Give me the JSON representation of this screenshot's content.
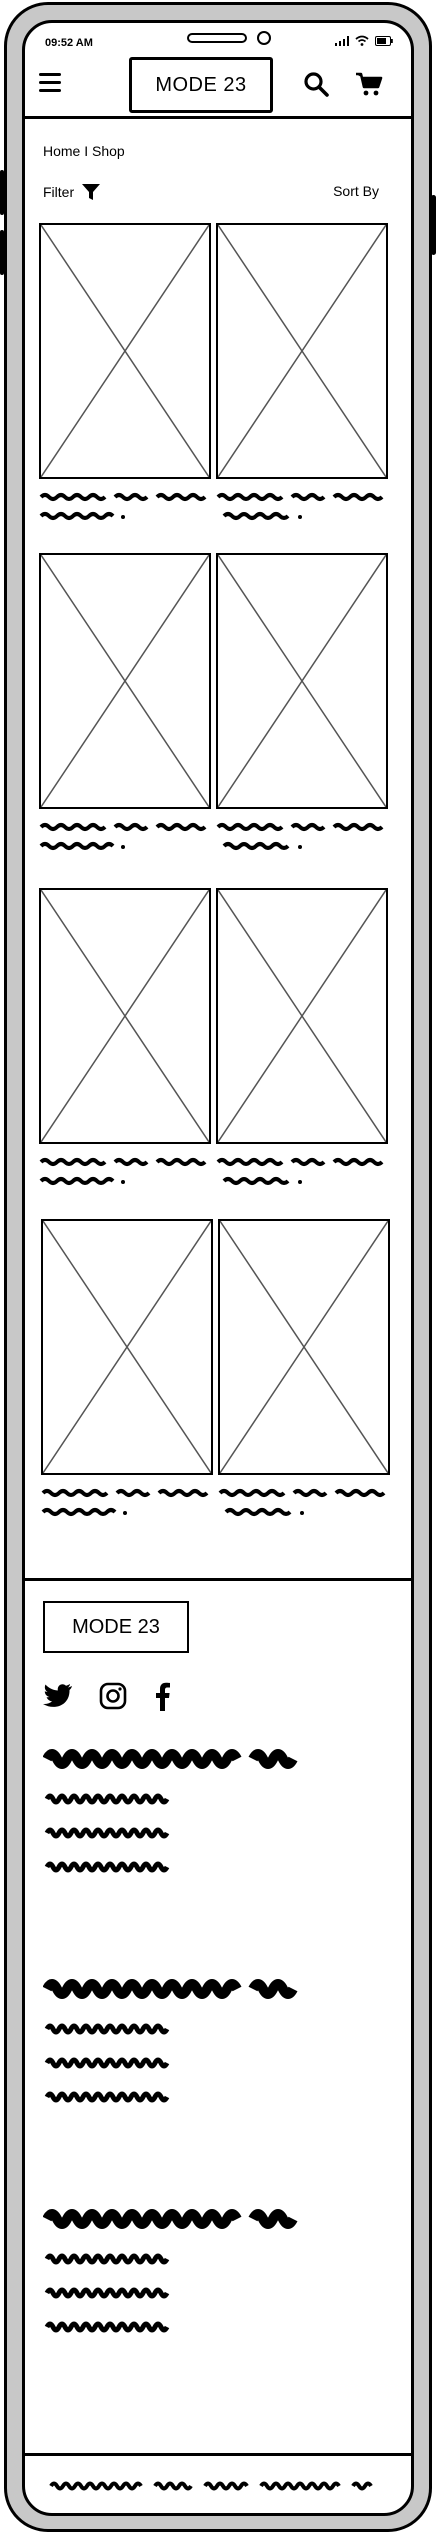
{
  "status": {
    "time": "09:52 AM"
  },
  "header": {
    "logo": "MODE 23"
  },
  "nav": {
    "breadcrumb": "Home I Shop",
    "filter_label": "Filter",
    "sort_label": "Sort By"
  },
  "products": {
    "count_visible": 8
  },
  "footer": {
    "logo": "MODE 23",
    "social": [
      "twitter-icon",
      "instagram-icon",
      "facebook-icon"
    ],
    "sections": 3,
    "links_per_section": 3
  },
  "colors": {
    "frame": "#c8c8c8",
    "ink": "#000000",
    "screen": "#ffffff",
    "placeholder_line": "#555555"
  }
}
